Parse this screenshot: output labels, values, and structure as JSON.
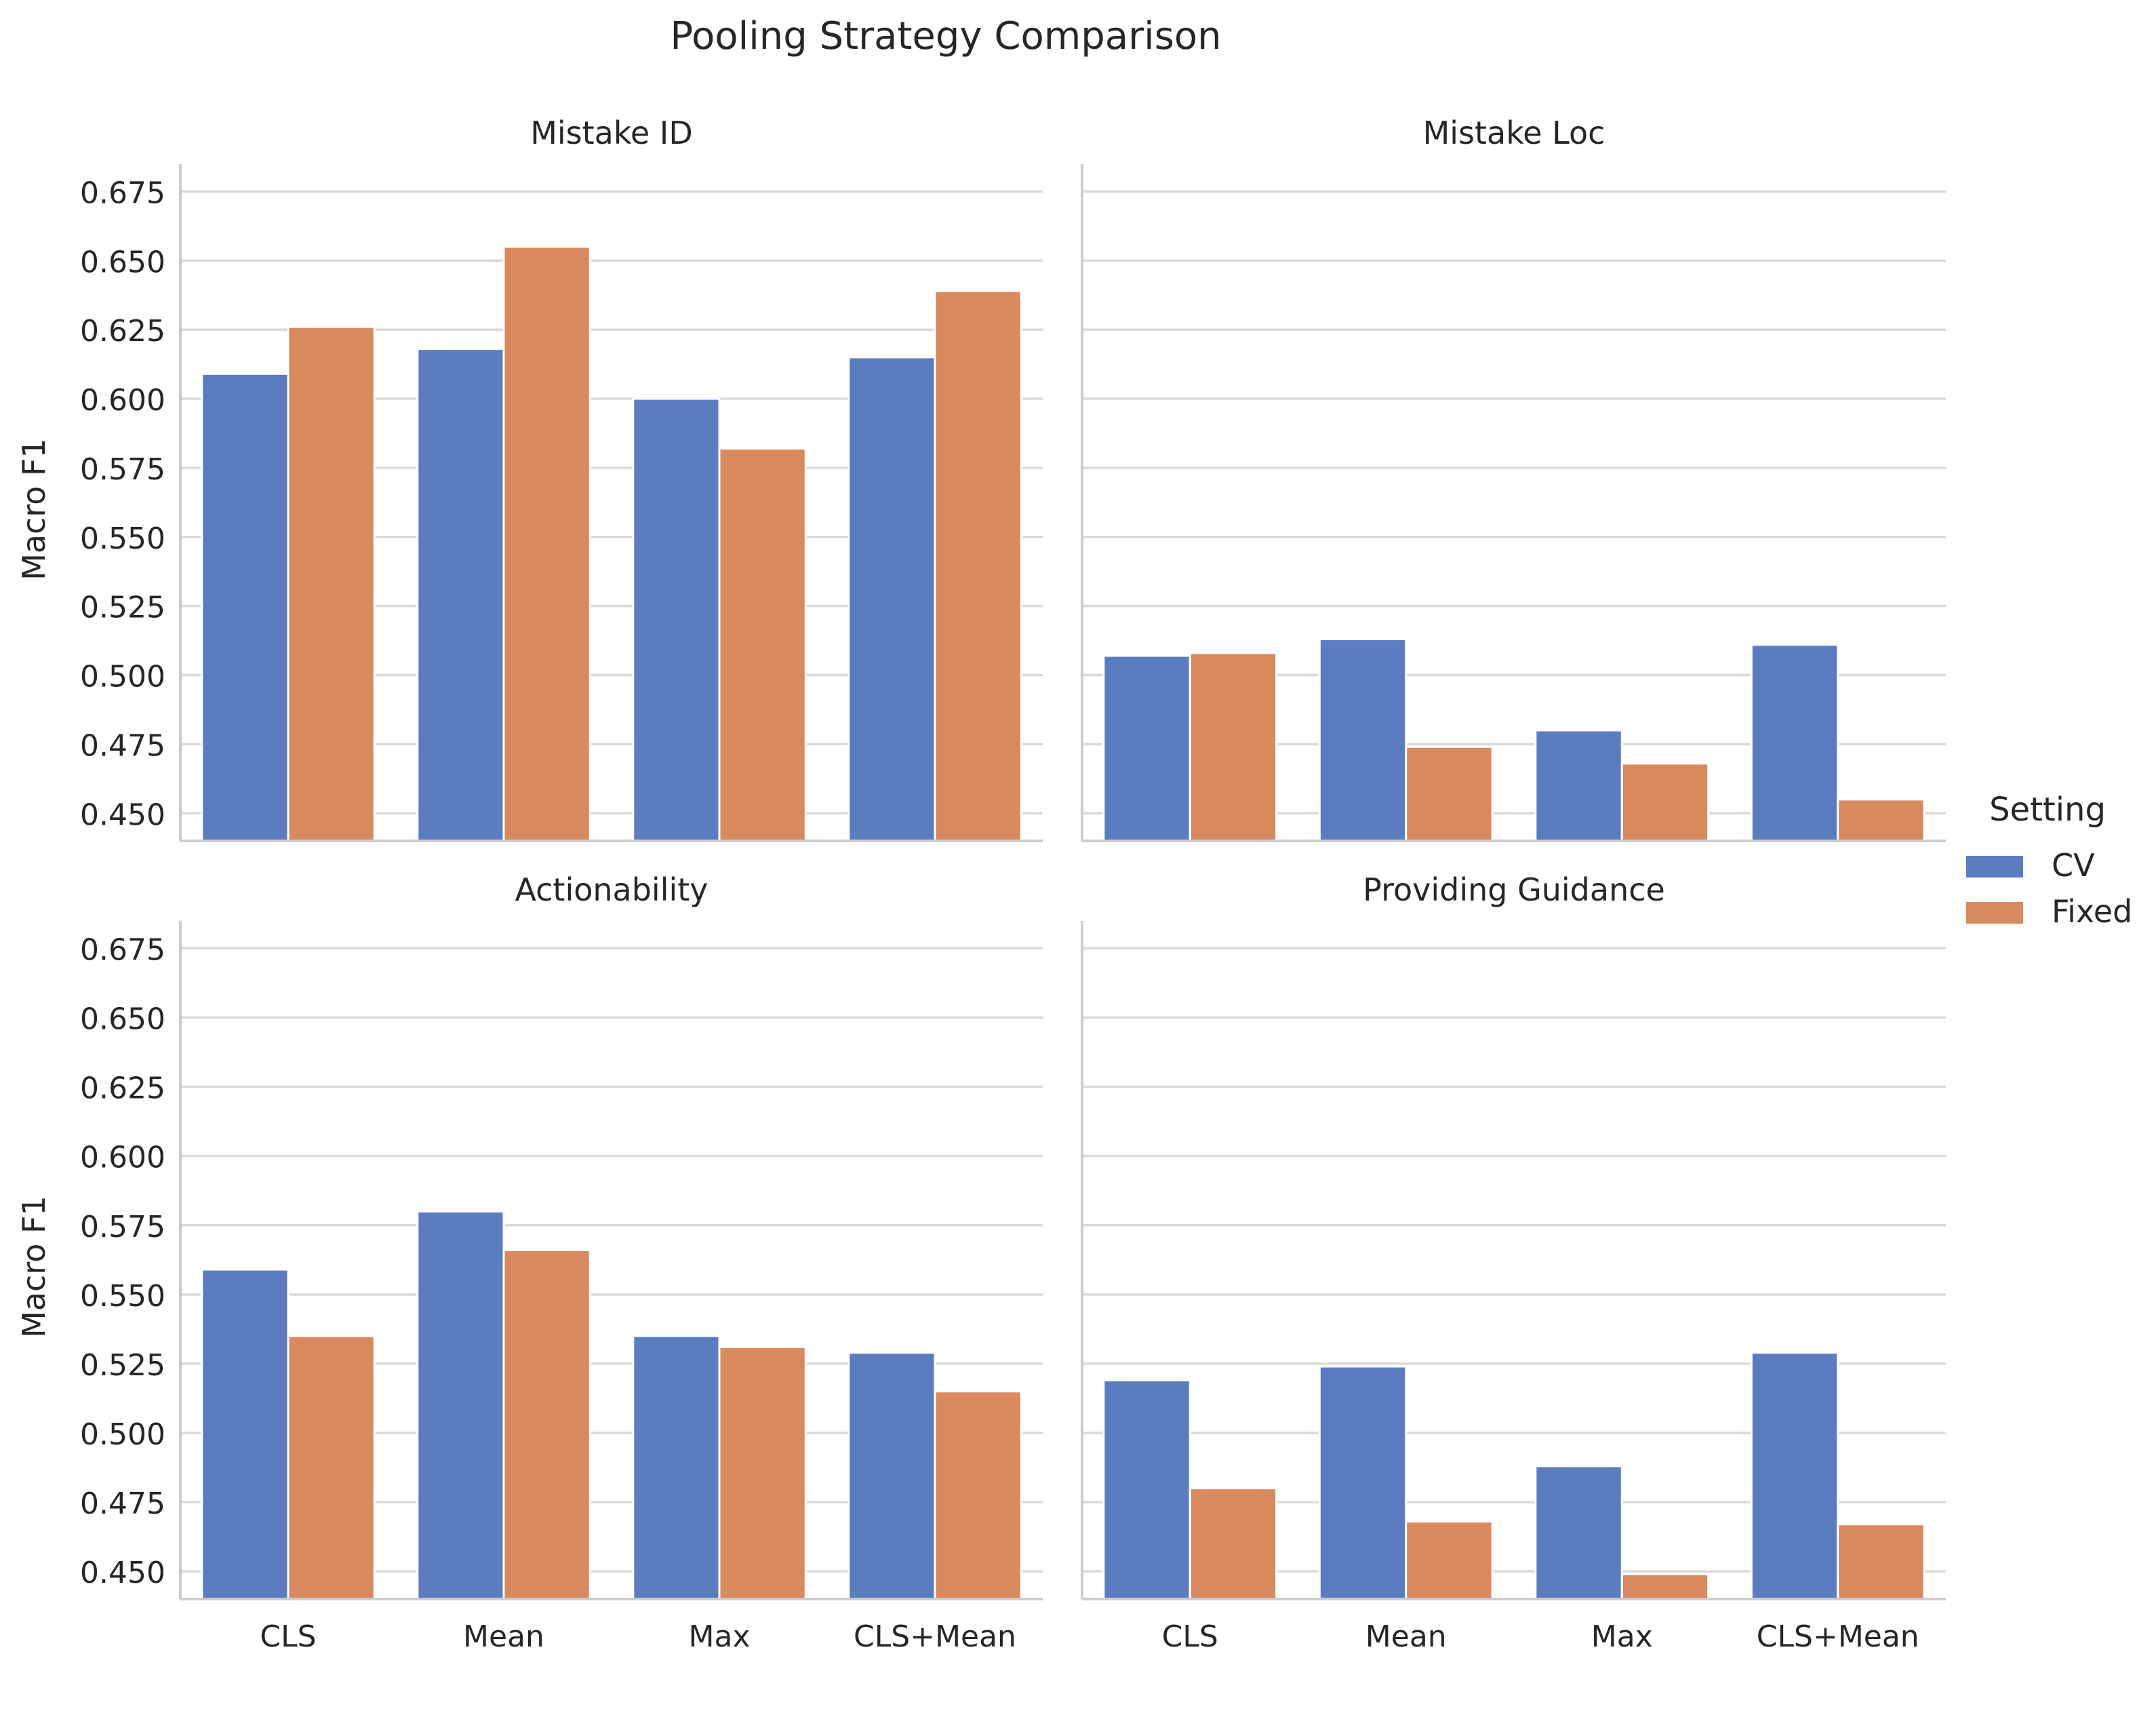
{
  "chart_data": {
    "type": "bar",
    "title": "Pooling Strategy Comparison",
    "categories": [
      "CLS",
      "Mean",
      "Max",
      "CLS+Mean"
    ],
    "ylabel": "Macro F1",
    "xlabel": "",
    "ylim": [
      0.44,
      0.68
    ],
    "yticks": [
      "0.450",
      "0.475",
      "0.500",
      "0.525",
      "0.550",
      "0.575",
      "0.600",
      "0.625",
      "0.650",
      "0.675"
    ],
    "grid": true,
    "legend": {
      "title": "Setting",
      "placement": "right",
      "entries": [
        {
          "name": "CV",
          "color": "#5b7dbf"
        },
        {
          "name": "Fixed",
          "color": "#d8895e"
        }
      ]
    },
    "panels": [
      {
        "title": "Mistake ID",
        "series": [
          {
            "name": "CV",
            "values": [
              0.609,
              0.618,
              0.6,
              0.615
            ]
          },
          {
            "name": "Fixed",
            "values": [
              0.626,
              0.655,
              0.582,
              0.639
            ]
          }
        ]
      },
      {
        "title": "Mistake Loc",
        "series": [
          {
            "name": "CV",
            "values": [
              0.507,
              0.513,
              0.48,
              0.511
            ]
          },
          {
            "name": "Fixed",
            "values": [
              0.508,
              0.474,
              0.468,
              0.455
            ]
          }
        ]
      },
      {
        "title": "Actionability",
        "series": [
          {
            "name": "CV",
            "values": [
              0.559,
              0.58,
              0.535,
              0.529
            ]
          },
          {
            "name": "Fixed",
            "values": [
              0.535,
              0.566,
              0.531,
              0.515
            ]
          }
        ]
      },
      {
        "title": "Providing Guidance",
        "series": [
          {
            "name": "CV",
            "values": [
              0.519,
              0.524,
              0.488,
              0.529
            ]
          },
          {
            "name": "Fixed",
            "values": [
              0.48,
              0.468,
              0.449,
              0.467
            ]
          }
        ]
      }
    ]
  }
}
